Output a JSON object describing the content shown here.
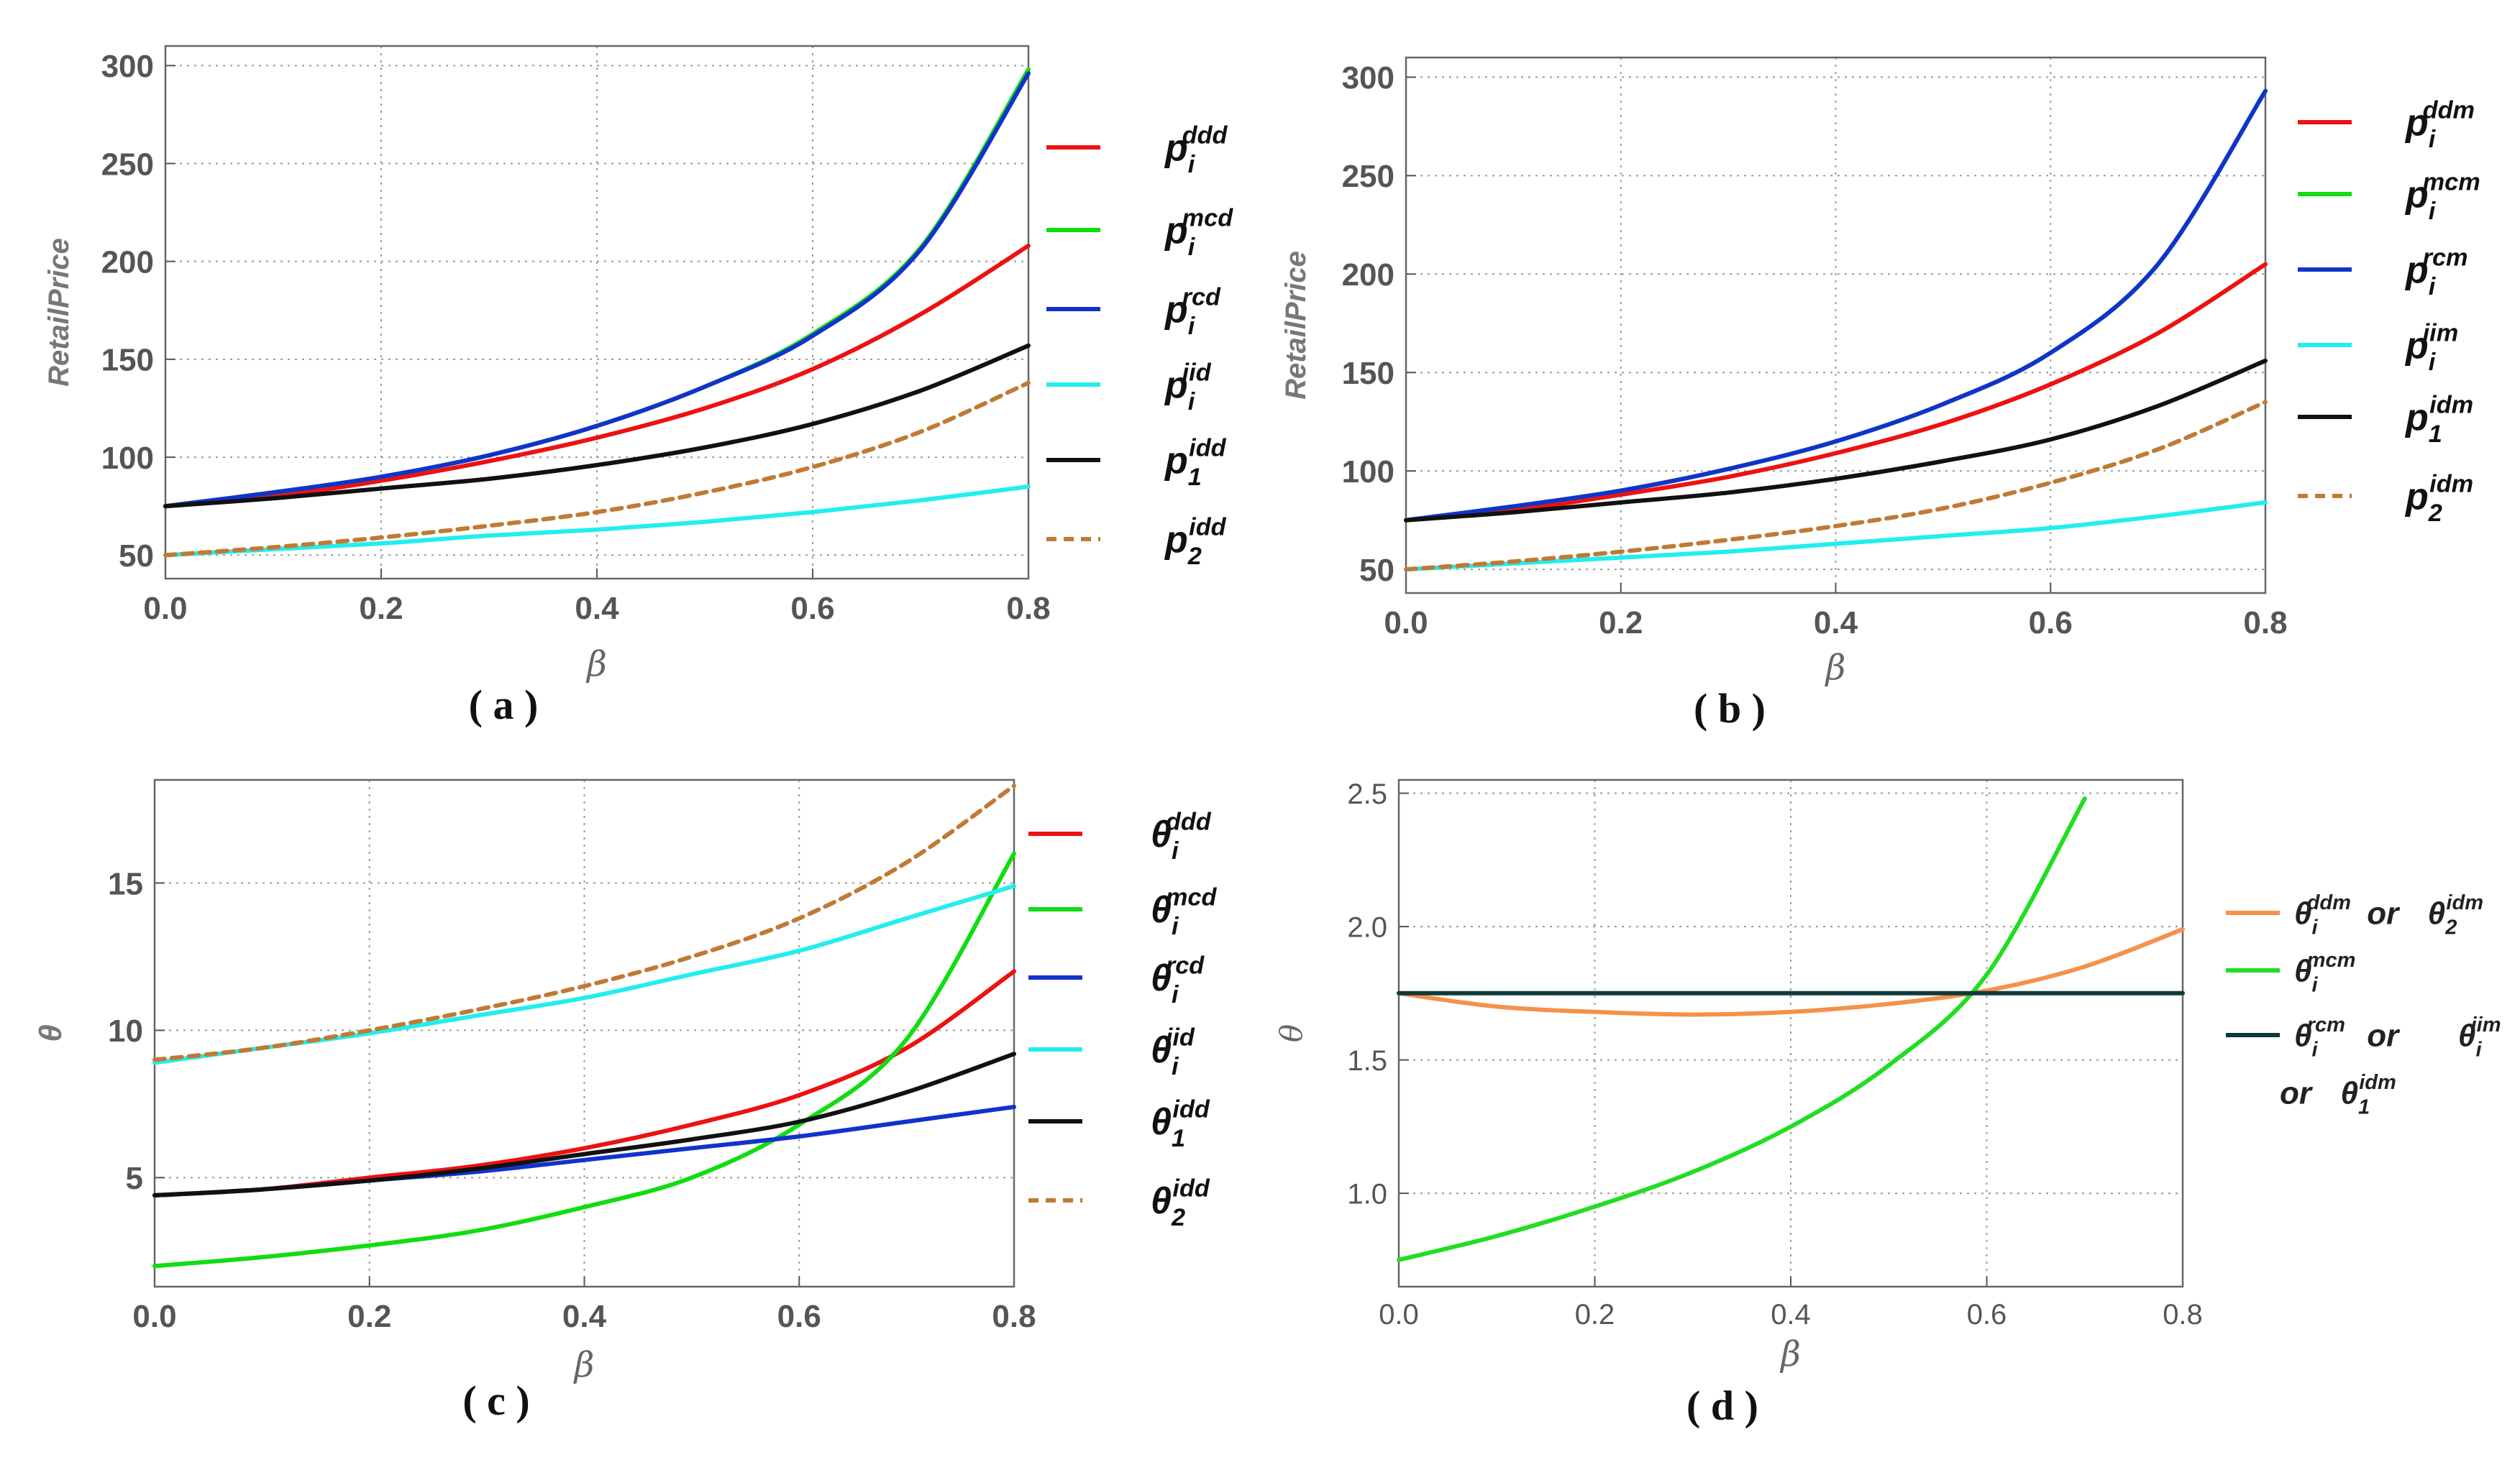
{
  "chart_data": [
    {
      "id": "a",
      "type": "line",
      "caption": "( a )",
      "xlabel": "β",
      "ylabel": "RetailPrice",
      "xlim": [
        0,
        0.8
      ],
      "ylim": [
        38,
        310
      ],
      "xticks": [
        "0.0",
        "0.2",
        "0.4",
        "0.6",
        "0.8"
      ],
      "yticks": [
        "50",
        "100",
        "150",
        "200",
        "250",
        "300"
      ],
      "x": [
        0.0,
        0.1,
        0.2,
        0.3,
        0.4,
        0.5,
        0.6,
        0.7,
        0.8
      ],
      "series": [
        {
          "name": "p_i^ddd",
          "base": "p",
          "sub": "i",
          "sup": "ddd",
          "color": "#ee1111",
          "dash": false,
          "values": [
            75,
            80,
            88,
            98,
            110,
            125,
            145,
            173,
            208
          ]
        },
        {
          "name": "p_i^mcd",
          "base": "p",
          "sub": "i",
          "sup": "mcd",
          "color": "#11dd11",
          "dash": false,
          "values": [
            75,
            82,
            90,
            101,
            116,
            136,
            163,
            207,
            298
          ]
        },
        {
          "name": "p_i^rcd",
          "base": "p",
          "sub": "i",
          "sup": "rcd",
          "color": "#1133cc",
          "dash": false,
          "values": [
            75,
            82,
            90,
            101,
            116,
            136,
            162,
            206,
            296
          ]
        },
        {
          "name": "p_i^iid",
          "base": "p",
          "sub": "i",
          "sup": "iid",
          "color": "#22eeee",
          "dash": false,
          "values": [
            50,
            53,
            56,
            60,
            63,
            67,
            72,
            78,
            85
          ]
        },
        {
          "name": "p_1^idd",
          "base": "p",
          "sub": "1",
          "sup": "idd",
          "color": "#111111",
          "dash": false,
          "values": [
            75,
            79,
            84,
            89,
            96,
            105,
            117,
            134,
            157
          ]
        },
        {
          "name": "p_2^idd",
          "base": "p",
          "sub": "2",
          "sup": "idd",
          "color": "#c07a33",
          "dash": true,
          "values": [
            50,
            54,
            59,
            65,
            72,
            82,
            95,
            113,
            138
          ]
        }
      ]
    },
    {
      "id": "b",
      "type": "line",
      "caption": "( b )",
      "xlabel": "β",
      "ylabel": "RetailPrice",
      "xlim": [
        0,
        0.8
      ],
      "ylim": [
        38,
        310
      ],
      "xticks": [
        "0.0",
        "0.2",
        "0.4",
        "0.6",
        "0.8"
      ],
      "yticks": [
        "50",
        "100",
        "150",
        "200",
        "250",
        "300"
      ],
      "x": [
        0.0,
        0.1,
        0.2,
        0.3,
        0.4,
        0.5,
        0.6,
        0.7,
        0.8
      ],
      "series": [
        {
          "name": "p_i^ddm",
          "base": "p",
          "sub": "i",
          "sup": "ddm",
          "color": "#ee1111",
          "dash": false,
          "values": [
            75,
            80,
            88,
            97,
            109,
            124,
            144,
            170,
            205
          ]
        },
        {
          "name": "p_i^mcm",
          "base": "p",
          "sub": "i",
          "sup": "mcm",
          "color": "#11dd11",
          "dash": false,
          "values": [
            75,
            82,
            90,
            101,
            115,
            134,
            160,
            205,
            293
          ]
        },
        {
          "name": "p_i^rcm",
          "base": "p",
          "sub": "i",
          "sup": "rcm",
          "color": "#1133cc",
          "dash": false,
          "values": [
            75,
            82,
            90,
            101,
            115,
            134,
            160,
            205,
            293
          ]
        },
        {
          "name": "p_i^iim",
          "base": "p",
          "sub": "i",
          "sup": "iim",
          "color": "#22eeee",
          "dash": false,
          "values": [
            50,
            53,
            56,
            59,
            63,
            67,
            71,
            77,
            84
          ]
        },
        {
          "name": "p_1^idm",
          "base": "p",
          "sub": "1",
          "sup": "idm",
          "color": "#111111",
          "dash": false,
          "values": [
            75,
            79,
            84,
            89,
            96,
            105,
            116,
            133,
            156
          ]
        },
        {
          "name": "p_2^idm",
          "base": "p",
          "sub": "2",
          "sup": "idm",
          "color": "#c07a33",
          "dash": true,
          "values": [
            50,
            54,
            59,
            65,
            72,
            81,
            94,
            111,
            135
          ]
        }
      ]
    },
    {
      "id": "c",
      "type": "line",
      "caption": "( c )",
      "xlabel": "β",
      "ylabel": "θ",
      "xlim": [
        0,
        0.8
      ],
      "ylim": [
        1.3,
        18.5
      ],
      "xticks": [
        "0.0",
        "0.2",
        "0.4",
        "0.6",
        "0.8"
      ],
      "yticks": [
        "5",
        "10",
        "15"
      ],
      "x": [
        0.0,
        0.1,
        0.2,
        0.3,
        0.4,
        0.5,
        0.6,
        0.7,
        0.8
      ],
      "series": [
        {
          "name": "θ_i^ddd",
          "base": "θ",
          "sub": "i",
          "sup": "ddd",
          "color": "#ee1111",
          "dash": false,
          "values": [
            4.4,
            4.6,
            5.0,
            5.4,
            6.0,
            6.8,
            7.8,
            9.4,
            12.0
          ]
        },
        {
          "name": "θ_i^mcd",
          "base": "θ",
          "sub": "i",
          "sup": "mcd",
          "color": "#11dd11",
          "dash": false,
          "values": [
            2.0,
            2.3,
            2.7,
            3.2,
            4.0,
            5.0,
            6.8,
            9.7,
            16.0
          ]
        },
        {
          "name": "θ_i^rcd",
          "base": "θ",
          "sub": "i",
          "sup": "rcd",
          "color": "#1133cc",
          "dash": false,
          "values": [
            4.4,
            4.6,
            4.9,
            5.2,
            5.6,
            6.0,
            6.4,
            6.9,
            7.4
          ]
        },
        {
          "name": "θ_i^iid",
          "base": "θ",
          "sub": "i",
          "sup": "iid",
          "color": "#22eeee",
          "dash": false,
          "values": [
            8.9,
            9.4,
            9.9,
            10.5,
            11.1,
            11.9,
            12.7,
            13.8,
            14.9
          ]
        },
        {
          "name": "θ_1^idd",
          "base": "θ",
          "sub": "1",
          "sup": "idd",
          "color": "#111111",
          "dash": false,
          "values": [
            4.4,
            4.6,
            4.9,
            5.3,
            5.8,
            6.3,
            6.9,
            7.9,
            9.2
          ]
        },
        {
          "name": "θ_2^idd",
          "base": "θ",
          "sub": "2",
          "sup": "idd",
          "color": "#c07a33",
          "dash": true,
          "values": [
            9.0,
            9.4,
            10.0,
            10.7,
            11.5,
            12.5,
            13.8,
            15.7,
            18.3
          ]
        }
      ]
    },
    {
      "id": "d",
      "type": "line",
      "caption": "( d )",
      "xlabel": "β",
      "ylabel": "θ",
      "xlim": [
        0,
        0.8
      ],
      "ylim": [
        0.65,
        2.55
      ],
      "xticks": [
        "0.0",
        "0.2",
        "0.4",
        "0.6",
        "0.8"
      ],
      "yticks": [
        "1.0",
        "1.5",
        "2.0",
        "2.5"
      ],
      "series": [
        {
          "name": "θ_i^ddm or θ_2^idm",
          "color": "#f5914a",
          "dash": false,
          "x": [
            0.0,
            0.1,
            0.2,
            0.3,
            0.4,
            0.5,
            0.6,
            0.7,
            0.8
          ],
          "values": [
            1.75,
            1.7,
            1.68,
            1.67,
            1.68,
            1.71,
            1.76,
            1.85,
            1.99
          ]
        },
        {
          "name": "θ_i^mcm",
          "color": "#22dd22",
          "dash": false,
          "x": [
            0.0,
            0.1,
            0.2,
            0.3,
            0.4,
            0.5,
            0.6,
            0.7
          ],
          "values": [
            0.75,
            0.84,
            0.95,
            1.08,
            1.25,
            1.48,
            1.82,
            2.48
          ]
        },
        {
          "name": "θ_i^rcm or θ_i^iim or θ_1^idm",
          "color": "#103a3a",
          "dash": false,
          "x": [
            0.0,
            0.8
          ],
          "values": [
            1.75,
            1.75
          ]
        }
      ],
      "legend": [
        {
          "color": "#f5914a",
          "parts": [
            {
              "b": "θ",
              "sub": "i",
              "sup": "ddm"
            },
            {
              "t": " or "
            },
            {
              "b": "θ",
              "sub": "2",
              "sup": "idm"
            }
          ]
        },
        {
          "color": "#22dd22",
          "parts": [
            {
              "b": "θ",
              "sub": "i",
              "sup": "mcm"
            }
          ]
        },
        {
          "color": "#103a3a",
          "parts": [
            {
              "b": "θ",
              "sub": "i",
              "sup": "rcm"
            },
            {
              "t": "  or  "
            },
            {
              "b": "θ",
              "sub": "i",
              "sup": "iim"
            }
          ]
        },
        {
          "color": null,
          "parts": [
            {
              "t": "or  "
            },
            {
              "b": "θ",
              "sub": "1",
              "sup": "idm"
            }
          ]
        }
      ]
    }
  ]
}
